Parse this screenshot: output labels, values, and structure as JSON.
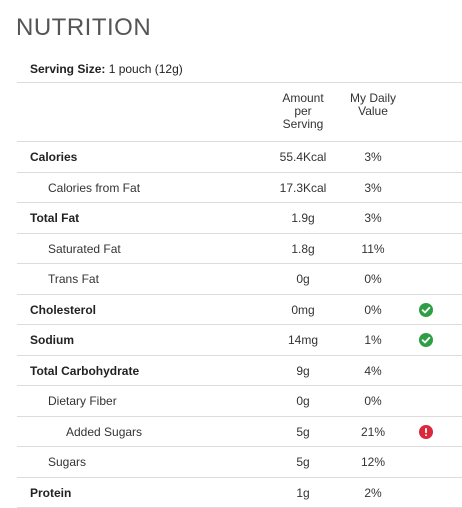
{
  "title": "NUTRITION",
  "serving": {
    "label": "Serving Size:",
    "value": "1 pouch (12g)"
  },
  "headers": {
    "amount": [
      "Amount",
      "per",
      "Serving"
    ],
    "daily": [
      "My Daily",
      "Value"
    ]
  },
  "rows": [
    {
      "label": "Calories",
      "level": 0,
      "amount": "55.4Kcal",
      "daily": "3%",
      "status": ""
    },
    {
      "label": "Calories from Fat",
      "level": 1,
      "amount": "17.3Kcal",
      "daily": "3%",
      "status": ""
    },
    {
      "label": "Total Fat",
      "level": 0,
      "amount": "1.9g",
      "daily": "3%",
      "status": ""
    },
    {
      "label": "Saturated Fat",
      "level": 1,
      "amount": "1.8g",
      "daily": "11%",
      "status": ""
    },
    {
      "label": "Trans Fat",
      "level": 1,
      "amount": "0g",
      "daily": "0%",
      "status": ""
    },
    {
      "label": "Cholesterol",
      "level": 0,
      "amount": "0mg",
      "daily": "0%",
      "status": "check-circle-icon"
    },
    {
      "label": "Sodium",
      "level": 0,
      "amount": "14mg",
      "daily": "1%",
      "status": "check-circle-icon"
    },
    {
      "label": "Total Carbohydrate",
      "level": 0,
      "amount": "9g",
      "daily": "4%",
      "status": ""
    },
    {
      "label": "Dietary Fiber",
      "level": 1,
      "amount": "0g",
      "daily": "0%",
      "status": ""
    },
    {
      "label": "Added Sugars",
      "level": 2,
      "amount": "5g",
      "daily": "21%",
      "status": "exclamation-circle-icon"
    },
    {
      "label": "Sugars",
      "level": 1,
      "amount": "5g",
      "daily": "12%",
      "status": ""
    },
    {
      "label": "Protein",
      "level": 0,
      "amount": "1g",
      "daily": "2%",
      "status": ""
    }
  ],
  "colors": {
    "ok": "#2e9e45",
    "warn": "#d9293a",
    "divider": "#dcdcdc"
  }
}
